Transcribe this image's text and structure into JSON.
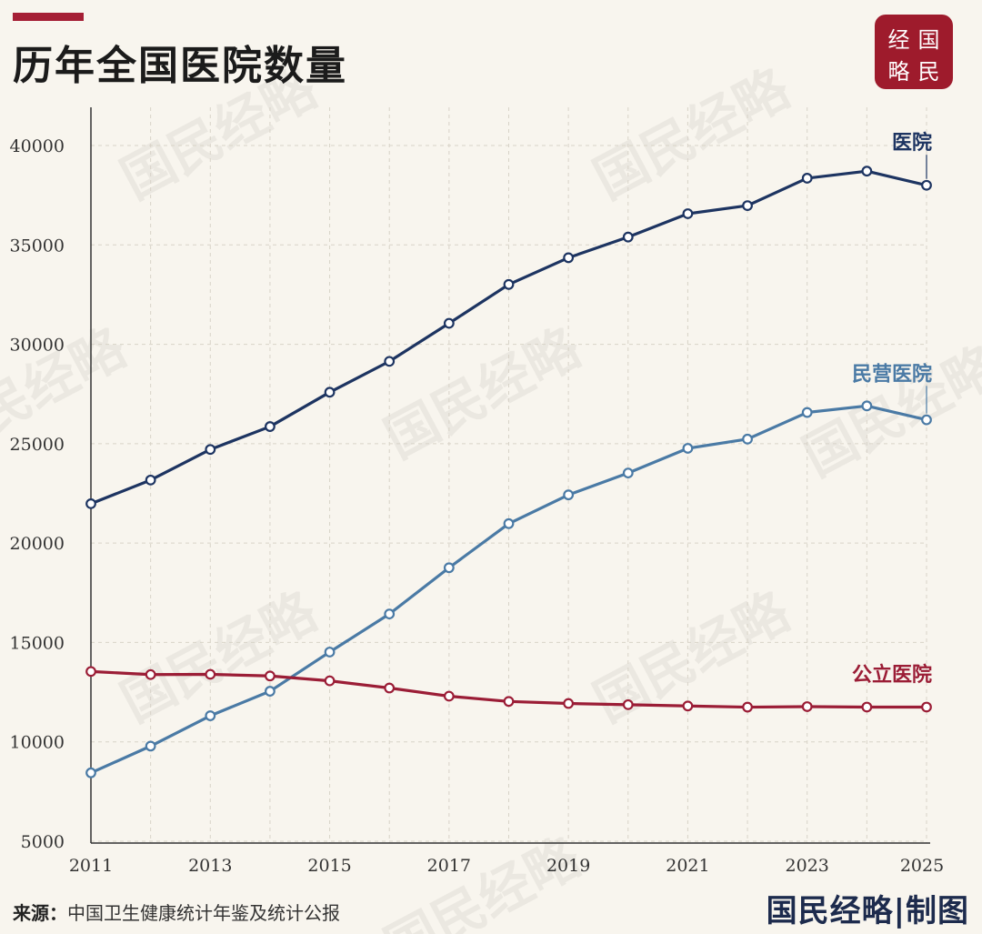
{
  "title": "历年全国医院数量",
  "logo": {
    "chars": [
      "经",
      "国",
      "略",
      "民"
    ],
    "color": "#9e1b2c"
  },
  "watermark": "国民经略",
  "source": {
    "label": "来源：",
    "text": "中国卫生健康统计年鉴及统计公报"
  },
  "brand": "国民经略|制图",
  "colors": {
    "background": "#f8f5ee",
    "accent": "#a51f35"
  },
  "chart_data": {
    "type": "line",
    "title": "历年全国医院数量",
    "x": [
      2011,
      2012,
      2013,
      2014,
      2015,
      2016,
      2017,
      2018,
      2019,
      2020,
      2021,
      2022,
      2023,
      2024,
      2025
    ],
    "xticks": [
      "2011",
      "2013",
      "2015",
      "2017",
      "2019",
      "2021",
      "2023",
      "2025"
    ],
    "yticks": [
      "5000",
      "10000",
      "15000",
      "20000",
      "25000",
      "30000",
      "35000",
      "40000"
    ],
    "ylim": [
      5000,
      42000
    ],
    "xlim": [
      2011,
      2025
    ],
    "grid": "dashed vertical and horizontal",
    "series": [
      {
        "name": "医院",
        "color": "#1d3461",
        "values": [
          21979,
          23170,
          24709,
          25860,
          27587,
          29140,
          31056,
          33009,
          34354,
          35394,
          36570,
          36976,
          38355,
          38710,
          38000
        ]
      },
      {
        "name": "民营医院",
        "color": "#4a7aa5",
        "values": [
          8440,
          9786,
          11313,
          12546,
          14518,
          16432,
          18759,
          20977,
          22424,
          23524,
          24766,
          25230,
          26570,
          26900,
          26200
        ]
      },
      {
        "name": "公立医院",
        "color": "#9b1d36",
        "values": [
          13539,
          13384,
          13396,
          13314,
          13069,
          12708,
          12297,
          12032,
          11930,
          11870,
          11804,
          11746,
          11772,
          11750,
          11750
        ]
      }
    ]
  }
}
